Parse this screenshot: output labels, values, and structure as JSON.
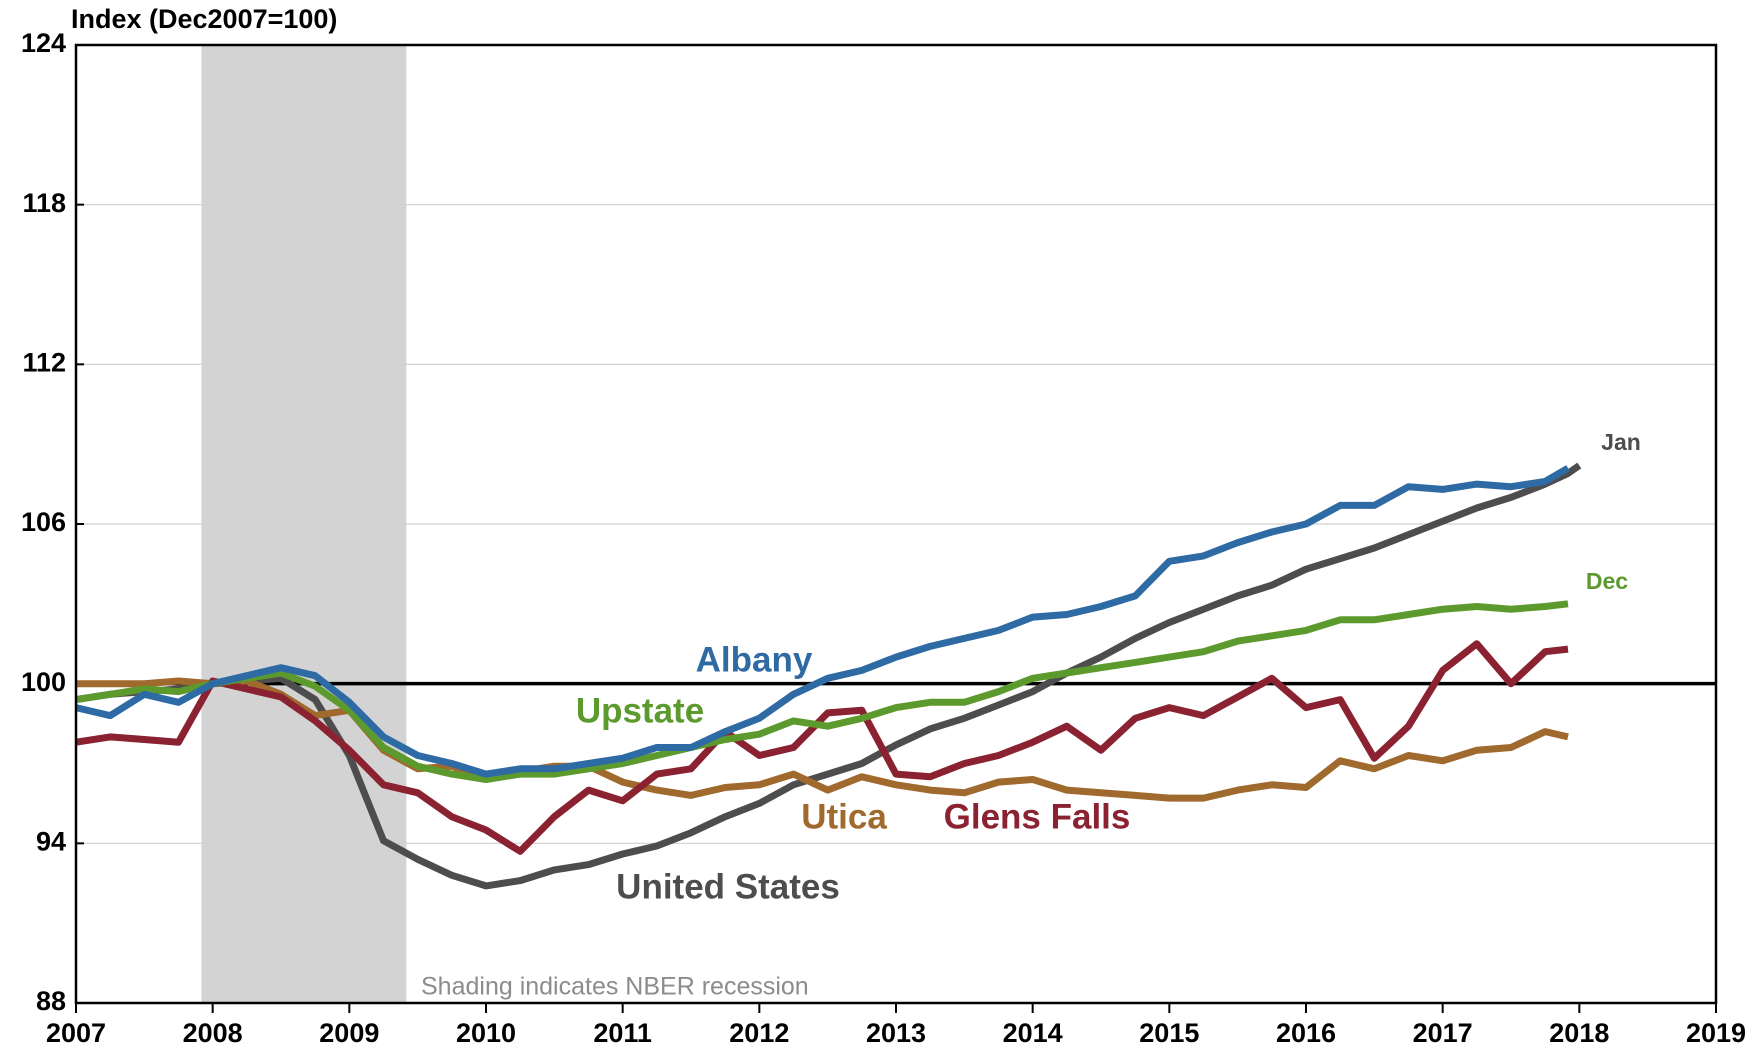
{
  "chart_data": {
    "type": "line",
    "y_axis_title": "Index (Dec2007=100)",
    "x": [
      2007,
      2007.25,
      2007.5,
      2007.75,
      2008,
      2008.25,
      2008.5,
      2008.75,
      2009,
      2009.25,
      2009.5,
      2009.75,
      2010,
      2010.25,
      2010.5,
      2010.75,
      2011,
      2011.25,
      2011.5,
      2011.75,
      2012,
      2012.25,
      2012.5,
      2012.75,
      2013,
      2013.25,
      2013.5,
      2013.75,
      2014,
      2014.25,
      2014.5,
      2014.75,
      2015,
      2015.25,
      2015.5,
      2015.75,
      2016,
      2016.25,
      2016.5,
      2016.75,
      2017,
      2017.25,
      2017.5,
      2017.75,
      2017.917,
      2018
    ],
    "series": [
      {
        "name": "United States",
        "color": "#4d4d4d",
        "values": [
          99.4,
          99.6,
          99.7,
          99.8,
          100.0,
          100.1,
          100.2,
          99.4,
          97.3,
          94.1,
          93.4,
          92.8,
          92.4,
          92.6,
          93.0,
          93.2,
          93.6,
          93.9,
          94.4,
          95.0,
          95.5,
          96.2,
          96.6,
          97.0,
          97.7,
          98.3,
          98.7,
          99.2,
          99.7,
          100.4,
          101.0,
          101.7,
          102.3,
          102.8,
          103.3,
          103.7,
          104.3,
          104.7,
          105.1,
          105.6,
          106.1,
          106.6,
          107.0,
          107.5,
          107.9,
          108.2
        ]
      },
      {
        "name": "Utica",
        "color": "#a0692d",
        "values": [
          100.0,
          100.0,
          100.0,
          100.1,
          100.0,
          100.1,
          99.6,
          98.8,
          99.0,
          97.5,
          96.8,
          96.9,
          96.4,
          96.7,
          96.9,
          96.9,
          96.3,
          96.0,
          95.8,
          96.1,
          96.2,
          96.6,
          96.0,
          96.5,
          96.2,
          96.0,
          95.9,
          96.3,
          96.4,
          96.0,
          95.9,
          95.8,
          95.7,
          95.7,
          96.0,
          96.2,
          96.1,
          97.1,
          96.8,
          97.3,
          97.1,
          97.5,
          97.6,
          98.2,
          98.0,
          null
        ]
      },
      {
        "name": "Glens Falls",
        "color": "#8b2231",
        "values": [
          97.8,
          98.0,
          97.9,
          97.8,
          100.1,
          99.8,
          99.5,
          98.6,
          97.5,
          96.2,
          95.9,
          95.0,
          94.5,
          93.7,
          95.0,
          96.0,
          95.6,
          96.6,
          96.8,
          98.2,
          97.3,
          97.6,
          98.9,
          99.0,
          96.6,
          96.5,
          97.0,
          97.3,
          97.8,
          98.4,
          97.5,
          98.7,
          99.1,
          98.8,
          99.5,
          100.2,
          99.1,
          99.4,
          97.2,
          98.4,
          100.5,
          101.5,
          100.0,
          101.2,
          101.3,
          null
        ]
      },
      {
        "name": "Upstate",
        "color": "#5c9a2e",
        "values": [
          99.4,
          99.6,
          99.8,
          99.7,
          100.0,
          100.2,
          100.4,
          99.9,
          99.0,
          97.6,
          96.9,
          96.6,
          96.4,
          96.6,
          96.6,
          96.8,
          97.0,
          97.3,
          97.6,
          97.9,
          98.1,
          98.6,
          98.4,
          98.7,
          99.1,
          99.3,
          99.3,
          99.7,
          100.2,
          100.4,
          100.6,
          100.8,
          101.0,
          101.2,
          101.6,
          101.8,
          102.0,
          102.4,
          102.4,
          102.6,
          102.8,
          102.9,
          102.8,
          102.9,
          103.0,
          null
        ]
      },
      {
        "name": "Albany",
        "color": "#2e6aa3",
        "values": [
          99.1,
          98.8,
          99.6,
          99.3,
          100.0,
          100.3,
          100.6,
          100.3,
          99.3,
          98.0,
          97.3,
          97.0,
          96.6,
          96.8,
          96.8,
          97.0,
          97.2,
          97.6,
          97.6,
          98.2,
          98.7,
          99.6,
          100.2,
          100.5,
          101.0,
          101.4,
          101.7,
          102.0,
          102.5,
          102.6,
          102.9,
          103.3,
          104.6,
          104.8,
          105.3,
          105.7,
          106.0,
          106.7,
          106.7,
          107.4,
          107.3,
          107.5,
          107.4,
          107.6,
          108.1,
          null
        ]
      }
    ],
    "reference_line": 100,
    "recession": {
      "start": 2007.917,
      "end": 2009.417,
      "label": "Shading indicates NBER recession"
    },
    "annotations": [
      {
        "text": "Jan",
        "color": "#4d4d4d"
      },
      {
        "text": "Dec",
        "color": "#5c9a2e"
      }
    ],
    "xlim": [
      2007,
      2019
    ],
    "xticks": [
      2007,
      2008,
      2009,
      2010,
      2011,
      2012,
      2013,
      2014,
      2015,
      2016,
      2017,
      2018,
      2019
    ],
    "ylim": [
      88,
      124
    ],
    "yticks": [
      88,
      94,
      100,
      106,
      112,
      118,
      124
    ],
    "grid": true
  }
}
